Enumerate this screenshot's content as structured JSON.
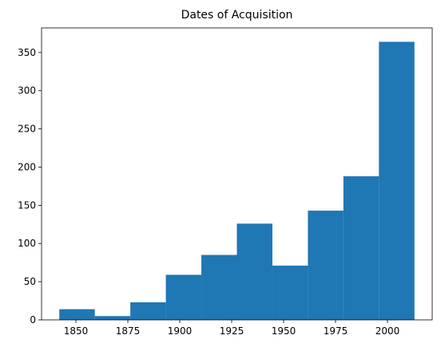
{
  "chart_data": {
    "type": "bar",
    "title": "Dates of Acquisition",
    "xlabel": "",
    "ylabel": "",
    "bins": [
      {
        "start": 1842.0,
        "end": 1859.1,
        "count": 14
      },
      {
        "start": 1859.1,
        "end": 1876.2,
        "count": 5
      },
      {
        "start": 1876.2,
        "end": 1893.3,
        "count": 23
      },
      {
        "start": 1893.3,
        "end": 1910.4,
        "count": 59
      },
      {
        "start": 1910.4,
        "end": 1927.5,
        "count": 85
      },
      {
        "start": 1927.5,
        "end": 1944.6,
        "count": 126
      },
      {
        "start": 1944.6,
        "end": 1961.7,
        "count": 71
      },
      {
        "start": 1961.7,
        "end": 1978.8,
        "count": 143
      },
      {
        "start": 1978.8,
        "end": 1995.9,
        "count": 188
      },
      {
        "start": 1995.9,
        "end": 2013.0,
        "count": 364
      }
    ],
    "xlim": [
      1833.45,
      2021.55
    ],
    "ylim": [
      0,
      382.2
    ],
    "xticks": [
      1850,
      1875,
      1900,
      1925,
      1950,
      1975,
      2000
    ],
    "yticks": [
      0,
      50,
      100,
      150,
      200,
      250,
      300,
      350
    ],
    "bar_color": "#1f77b4",
    "grid": false
  }
}
